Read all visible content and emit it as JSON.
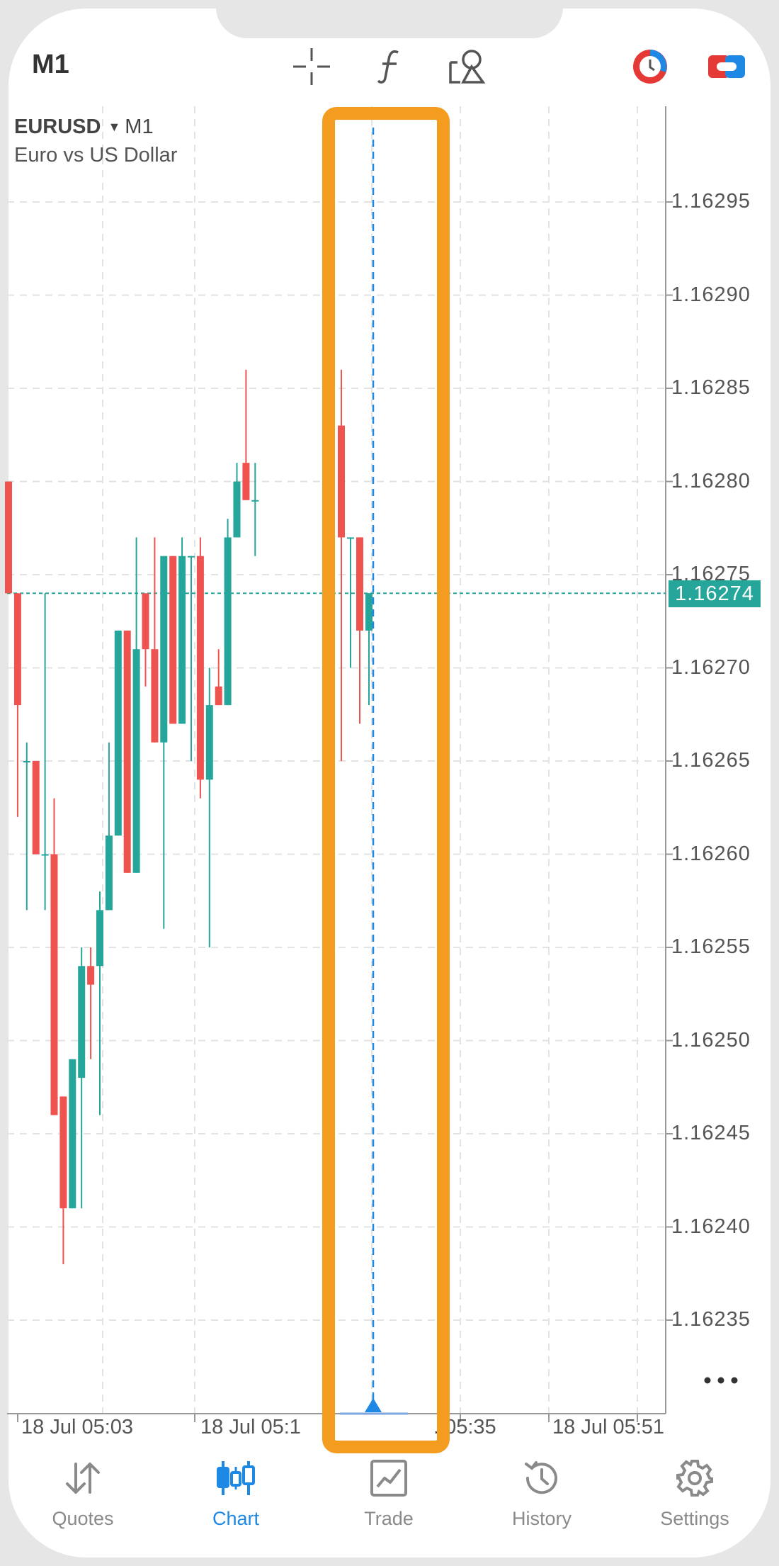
{
  "toolbar": {
    "timeframe": "M1",
    "crosshair_icon": "crosshair-icon",
    "indicators_icon": "function-f-icon",
    "objects_icon": "shapes-icon",
    "one_click_icon": "timer-pie-icon",
    "account_icon": "account-toggle-icon"
  },
  "chart": {
    "symbol": "EURUSD",
    "period": "M1",
    "description": "Euro vs US Dollar",
    "current_price": "1.16274",
    "price_labels": [
      "1.16295",
      "1.16290",
      "1.16285",
      "1.16280",
      "1.16275",
      "1.16270",
      "1.16265",
      "1.16260",
      "1.16255",
      "1.16250",
      "1.16245",
      "1.16240",
      "1.16235"
    ],
    "time_labels": [
      "18 Jul 05:03",
      "18 Jul 05:1",
      ". 05:35",
      "18 Jul 05:51"
    ],
    "colors": {
      "bull": "#26a69a",
      "bear": "#ef5350",
      "highlight": "#f39c1f",
      "vline": "#1e88e5"
    }
  },
  "chart_data": {
    "type": "candlestick",
    "title": "EURUSD M1",
    "ylim": [
      1.1623,
      1.163
    ],
    "candles": [
      {
        "o": 1.1628,
        "h": 1.1628,
        "l": 1.16274,
        "c": 1.16274
      },
      {
        "o": 1.16274,
        "h": 1.16274,
        "l": 1.16262,
        "c": 1.16268
      },
      {
        "o": 1.16265,
        "h": 1.16266,
        "l": 1.16257,
        "c": 1.16265
      },
      {
        "o": 1.16265,
        "h": 1.16265,
        "l": 1.1626,
        "c": 1.1626
      },
      {
        "o": 1.1626,
        "h": 1.16274,
        "l": 1.16257,
        "c": 1.1626
      },
      {
        "o": 1.1626,
        "h": 1.16263,
        "l": 1.16246,
        "c": 1.16246
      },
      {
        "o": 1.16247,
        "h": 1.16247,
        "l": 1.16238,
        "c": 1.16241
      },
      {
        "o": 1.16241,
        "h": 1.16249,
        "l": 1.16241,
        "c": 1.16249
      },
      {
        "o": 1.16248,
        "h": 1.16255,
        "l": 1.16241,
        "c": 1.16254
      },
      {
        "o": 1.16254,
        "h": 1.16255,
        "l": 1.16249,
        "c": 1.16253
      },
      {
        "o": 1.16254,
        "h": 1.16258,
        "l": 1.16246,
        "c": 1.16257
      },
      {
        "o": 1.16257,
        "h": 1.16266,
        "l": 1.16257,
        "c": 1.16261
      },
      {
        "o": 1.16261,
        "h": 1.16272,
        "l": 1.16261,
        "c": 1.16272
      },
      {
        "o": 1.16272,
        "h": 1.16272,
        "l": 1.16259,
        "c": 1.16259
      },
      {
        "o": 1.16259,
        "h": 1.16277,
        "l": 1.16259,
        "c": 1.16271
      },
      {
        "o": 1.16274,
        "h": 1.16274,
        "l": 1.16269,
        "c": 1.16271
      },
      {
        "o": 1.16271,
        "h": 1.16277,
        "l": 1.16266,
        "c": 1.16266
      },
      {
        "o": 1.16266,
        "h": 1.16276,
        "l": 1.16256,
        "c": 1.16276
      },
      {
        "o": 1.16276,
        "h": 1.16276,
        "l": 1.16267,
        "c": 1.16267
      },
      {
        "o": 1.16267,
        "h": 1.16277,
        "l": 1.16267,
        "c": 1.16276
      },
      {
        "o": 1.16276,
        "h": 1.16276,
        "l": 1.16265,
        "c": 1.16276
      },
      {
        "o": 1.16276,
        "h": 1.16277,
        "l": 1.16263,
        "c": 1.16264
      },
      {
        "o": 1.16264,
        "h": 1.1627,
        "l": 1.16255,
        "c": 1.16268
      },
      {
        "o": 1.16269,
        "h": 1.16271,
        "l": 1.16268,
        "c": 1.16268
      },
      {
        "o": 1.16268,
        "h": 1.16278,
        "l": 1.16268,
        "c": 1.16277
      },
      {
        "o": 1.16277,
        "h": 1.16281,
        "l": 1.16277,
        "c": 1.1628
      },
      {
        "o": 1.16281,
        "h": 1.16286,
        "l": 1.16279,
        "c": 1.16279
      },
      {
        "o": 1.16279,
        "h": 1.16281,
        "l": 1.16276,
        "c": 1.16279
      },
      {
        "o": 1.16283,
        "h": 1.16286,
        "l": 1.16265,
        "c": 1.16277
      },
      {
        "o": 1.16277,
        "h": 1.16277,
        "l": 1.1627,
        "c": 1.16277
      },
      {
        "o": 1.16277,
        "h": 1.16277,
        "l": 1.16267,
        "c": 1.16272
      },
      {
        "o": 1.16272,
        "h": 1.16274,
        "l": 1.16268,
        "c": 1.16274
      }
    ]
  },
  "tabs": [
    {
      "label": "Quotes",
      "icon": "quotes-arrows-icon",
      "active": false
    },
    {
      "label": "Chart",
      "icon": "chart-candles-icon",
      "active": true
    },
    {
      "label": "Trade",
      "icon": "trade-chart-icon",
      "active": false
    },
    {
      "label": "History",
      "icon": "history-clock-icon",
      "active": false
    },
    {
      "label": "Settings",
      "icon": "settings-gear-icon",
      "active": false
    }
  ]
}
